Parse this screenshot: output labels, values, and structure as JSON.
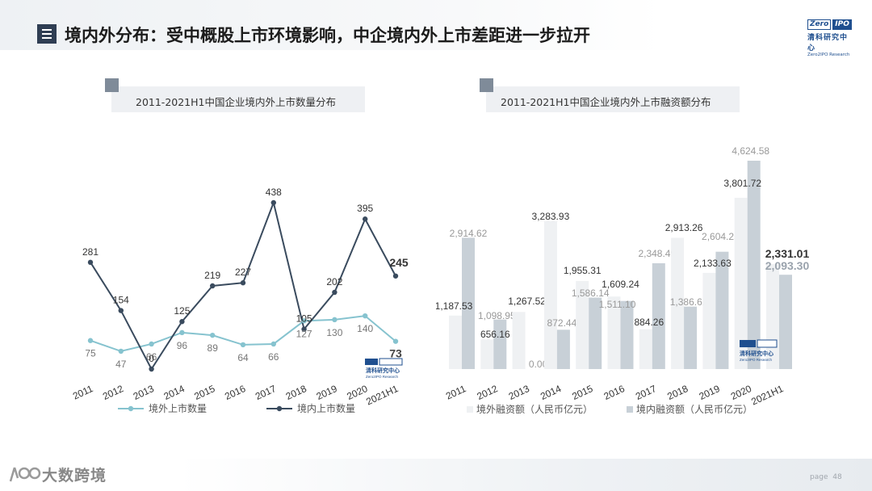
{
  "header": {
    "title": "境内外分布：受中概股上市环境影响，中企境内外上市差距进一步拉开",
    "logo_zero": "Zero",
    "logo_ipo": "IPO",
    "logo_cn": "清科研究中心",
    "logo_en": "Zero2IPO Research"
  },
  "footer": {
    "brand": "大数跨境",
    "page_label": "page",
    "page_number": "48"
  },
  "chart_data": [
    {
      "type": "line",
      "title": "2011-2021H1中国企业境内外上市数量分布",
      "categories": [
        "2011",
        "2012",
        "2013",
        "2014",
        "2015",
        "2016",
        "2017",
        "2018",
        "2019",
        "2020",
        "2021H1"
      ],
      "series": [
        {
          "name": "境外上市数量",
          "color": "#86c3cf",
          "values": [
            75,
            47,
            66,
            96,
            89,
            64,
            66,
            127,
            130,
            140,
            73
          ]
        },
        {
          "name": "境内上市数量",
          "color": "#3a4b5e",
          "values": [
            281,
            154,
            0,
            125,
            219,
            227,
            438,
            105,
            202,
            395,
            245
          ]
        }
      ],
      "legend": "bottom",
      "grid": false
    },
    {
      "type": "bar",
      "title": "2011-2021H1中国企业境内外上市融资额分布",
      "categories": [
        "2011",
        "2012",
        "2013",
        "2014",
        "2015",
        "2016",
        "2017",
        "2018",
        "2019",
        "2020",
        "2021H1"
      ],
      "series": [
        {
          "name": "境外融资额（人民币亿元）",
          "color": "#eff1f3",
          "values": [
            1187.53,
            656.16,
            1267.52,
            3283.93,
            1955.31,
            1609.24,
            884.26,
            2913.26,
            2133.63,
            3801.72,
            2331.01
          ]
        },
        {
          "name": "境内融资额（人民币亿元）",
          "color": "#c8d0d7",
          "values": [
            2914.62,
            1098.95,
            0.0,
            872.44,
            1586.14,
            1511.1,
            2348.49,
            1386.62,
            2604.25,
            4624.58,
            2093.3
          ]
        }
      ],
      "value_labels": {
        "outer": [
          "1,187.53",
          "656.16",
          "1,267.52",
          "3,283.93",
          "1,955.31",
          "1,609.24",
          "884.26",
          "2,913.26",
          "2,133.63",
          "3,801.72",
          "2,331.01"
        ],
        "inner": [
          "2,914.62",
          "1,098.95",
          "0.00",
          "872.44",
          "1,586.14",
          "1,511.10",
          "2,348.49",
          "1,386.62",
          "2,604.25",
          "4,624.58",
          "2,093.30"
        ]
      },
      "legend": "bottom",
      "grid": false
    }
  ]
}
